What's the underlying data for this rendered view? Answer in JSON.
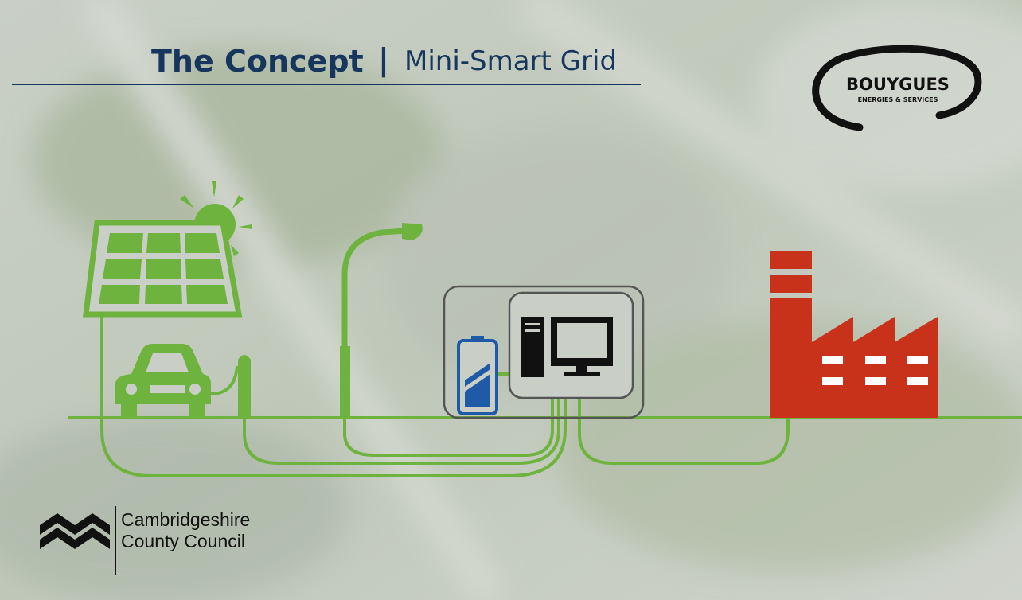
{
  "header": {
    "title": "The Concept",
    "separator": "|",
    "subtitle": "Mini-Smart Grid"
  },
  "logos": {
    "bouygues": {
      "name": "BOUYGUES",
      "tagline": "ENERGIES & SERVICES"
    },
    "council": {
      "line1": "Cambridgeshire",
      "line2": "County Council"
    }
  }
}
